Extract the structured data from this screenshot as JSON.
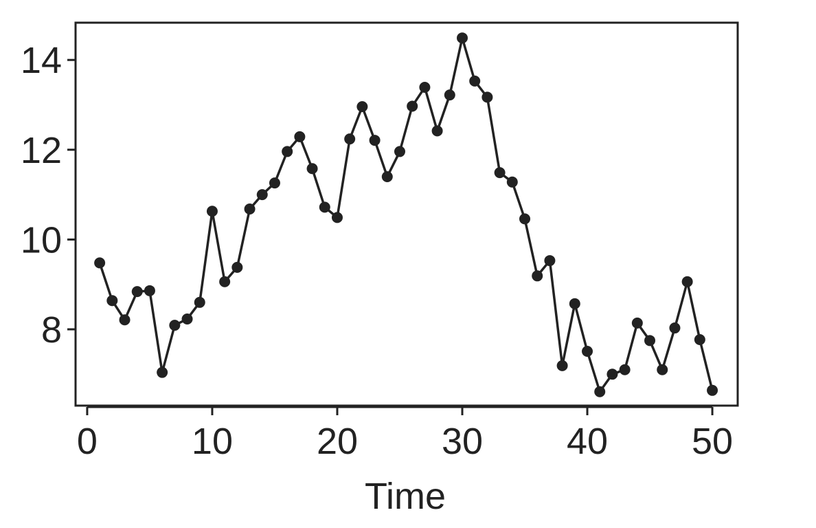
{
  "chart_data": {
    "type": "line",
    "x_label": "Time",
    "x": [
      1,
      2,
      3,
      4,
      5,
      6,
      7,
      8,
      9,
      10,
      11,
      12,
      13,
      14,
      15,
      16,
      17,
      18,
      19,
      20,
      21,
      22,
      23,
      24,
      25,
      26,
      27,
      28,
      29,
      30,
      31,
      32,
      33,
      34,
      35,
      36,
      37,
      38,
      39,
      40,
      41,
      42,
      43,
      44,
      45,
      46,
      47,
      48,
      49,
      50
    ],
    "values": [
      9.48,
      8.64,
      8.21,
      8.84,
      8.86,
      7.04,
      8.09,
      8.23,
      8.6,
      10.63,
      9.06,
      9.38,
      10.68,
      11.0,
      11.26,
      11.96,
      12.29,
      11.58,
      10.72,
      10.49,
      12.24,
      12.96,
      12.21,
      11.4,
      11.96,
      12.97,
      13.39,
      12.42,
      13.22,
      14.49,
      13.53,
      13.17,
      11.49,
      11.28,
      10.46,
      9.19,
      9.53,
      7.19,
      8.57,
      7.51,
      6.61,
      7.0,
      7.1,
      8.14,
      7.75,
      7.1,
      8.03,
      9.06,
      7.77,
      6.64
    ],
    "color": "#222222",
    "xlim": [
      -0.93,
      52.03
    ],
    "xticks": [
      0,
      10,
      20,
      30,
      40,
      50
    ],
    "ylim": [
      6.3,
      14.83
    ],
    "yticks": [
      8,
      10,
      12,
      14
    ]
  }
}
